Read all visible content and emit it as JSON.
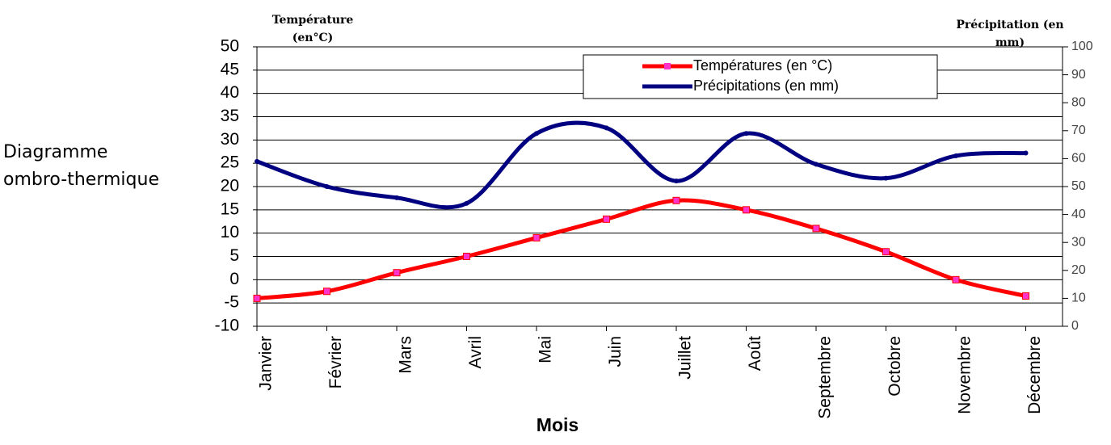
{
  "chart_data": {
    "type": "line",
    "title": "Diagramme ombro-thermique",
    "y_label": "Température (en°C)",
    "y2_label": "Précipitation (en mm)",
    "x_label": "Mois",
    "categories": [
      "Janvier",
      "Février",
      "Mars",
      "Avril",
      "Mai",
      "Juin",
      "Juillet",
      "Août",
      "Septembre",
      "Octobre",
      "Novembre",
      "Décembre"
    ],
    "series": [
      {
        "name": "Températures (en °C)",
        "color": "#ff0000",
        "marker_color": "#ff33cc",
        "values": [
          -4,
          -2.5,
          1.5,
          5,
          9,
          13,
          17,
          15,
          11,
          6,
          0,
          -3.5
        ]
      },
      {
        "name": "Précipitations (en mm)",
        "color": "#000080",
        "axis": "y2",
        "values": [
          59,
          50,
          46,
          44,
          69,
          71,
          52,
          69,
          58,
          53,
          61,
          62
        ]
      }
    ],
    "ylim": [
      -10,
      50
    ],
    "yticks": [
      -10,
      -5,
      0,
      5,
      10,
      15,
      20,
      25,
      30,
      35,
      40,
      45,
      50
    ],
    "y2lim": [
      0,
      100
    ],
    "y2ticks": [
      0,
      10,
      20,
      30,
      40,
      50,
      60,
      70,
      80,
      90,
      100
    ],
    "grid": true,
    "legend": "top-right"
  }
}
